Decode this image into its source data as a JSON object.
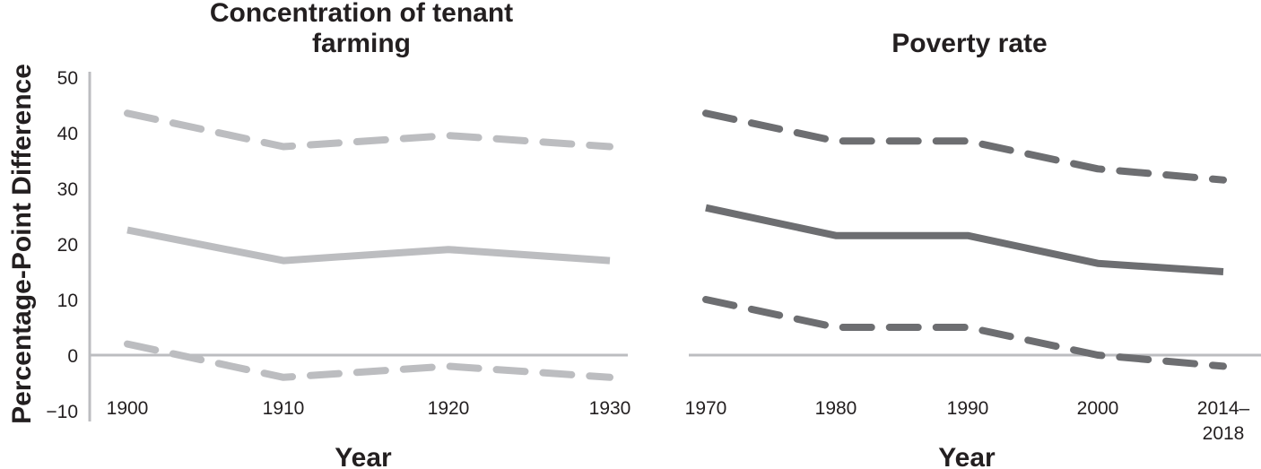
{
  "y_axis_label": "Percentage-Point Difference",
  "chart_data": [
    {
      "type": "line",
      "title": "Concentration of tenant farming",
      "title_lines": [
        "Concentration of tenant",
        "farming"
      ],
      "xlabel": "Year",
      "ylabel": "Percentage-Point Difference",
      "x": [
        "1900",
        "1910",
        "1920",
        "1930"
      ],
      "ylim": [
        -10,
        50
      ],
      "yticks": [
        50,
        40,
        30,
        20,
        10,
        0,
        -10
      ],
      "color": "#bcbdc0",
      "series": [
        {
          "role": "upper",
          "style": "dashed",
          "values": [
            43.5,
            37.5,
            39.5,
            37.5
          ]
        },
        {
          "role": "estimate",
          "style": "solid",
          "values": [
            22.5,
            17,
            19,
            17
          ]
        },
        {
          "role": "lower",
          "style": "dashed",
          "values": [
            2,
            -4,
            -2,
            -4
          ]
        }
      ]
    },
    {
      "type": "line",
      "title": "Poverty rate",
      "title_lines": [
        "Poverty rate"
      ],
      "xlabel": "Year",
      "x": [
        "1970",
        "1980",
        "1990",
        "2000",
        "2014–2018"
      ],
      "x_label_lines": [
        [
          "1970"
        ],
        [
          "1980"
        ],
        [
          "1990"
        ],
        [
          "2000"
        ],
        [
          "2014–",
          "2018"
        ]
      ],
      "ylim": [
        -10,
        50
      ],
      "color": "#6d6e71",
      "series": [
        {
          "role": "upper",
          "style": "dashed",
          "values": [
            43.5,
            38.5,
            38.5,
            33.5,
            31.5
          ]
        },
        {
          "role": "estimate",
          "style": "solid",
          "values": [
            26.5,
            21.5,
            21.5,
            16.5,
            15
          ]
        },
        {
          "role": "lower",
          "style": "dashed",
          "values": [
            10,
            5,
            5,
            0,
            -2
          ]
        }
      ]
    }
  ]
}
